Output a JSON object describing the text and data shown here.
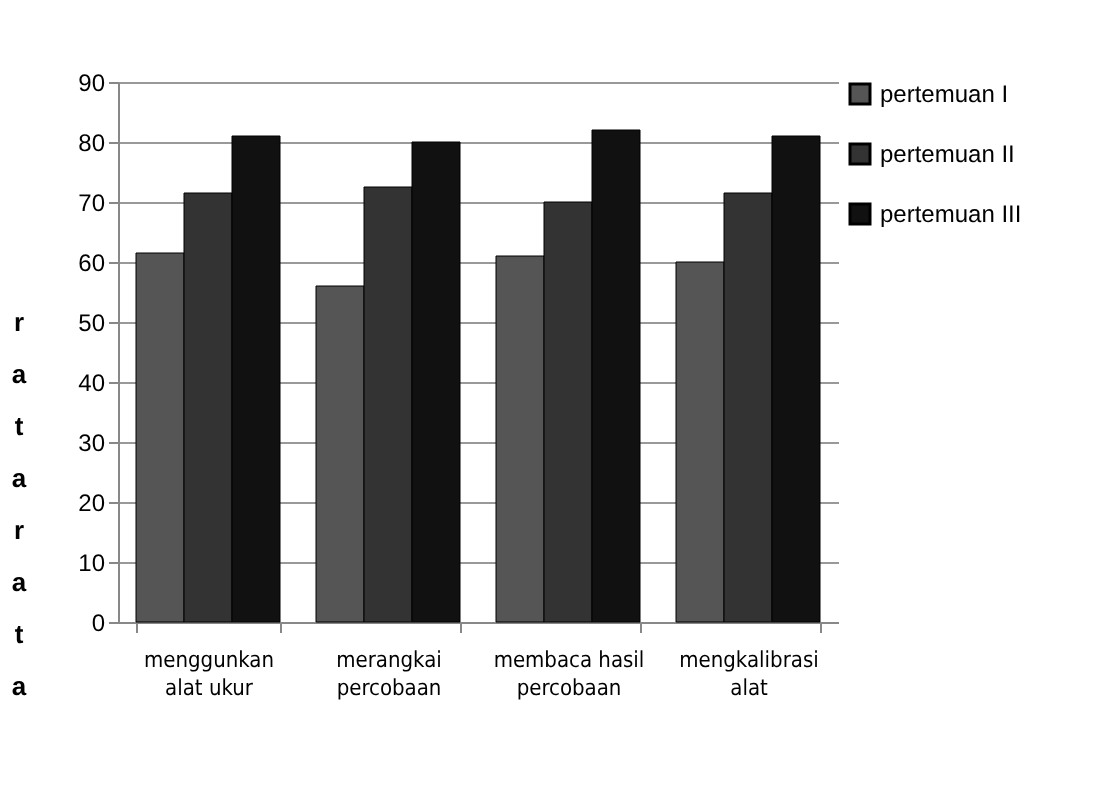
{
  "chart_data": {
    "type": "bar",
    "ylabel": "ratarata",
    "categories": [
      "menggunkan\nalat ukur",
      "merangkai\npercobaan",
      "membaca hasil\npercobaan",
      "mengkalibrasi\nalat"
    ],
    "series": [
      {
        "name": "pertemuan I",
        "color": "#555555",
        "values": [
          61.5,
          56,
          61,
          60
        ]
      },
      {
        "name": "pertemuan II",
        "color": "#333333",
        "values": [
          71.5,
          72.5,
          70,
          71.5
        ]
      },
      {
        "name": "pertemuan III",
        "color": "#111111",
        "values": [
          81,
          80,
          82,
          81
        ]
      }
    ],
    "ylim": [
      0,
      90
    ],
    "yticks": [
      0,
      10,
      20,
      30,
      40,
      50,
      60,
      70,
      80,
      90
    ],
    "grid": "y",
    "legend": "right"
  }
}
